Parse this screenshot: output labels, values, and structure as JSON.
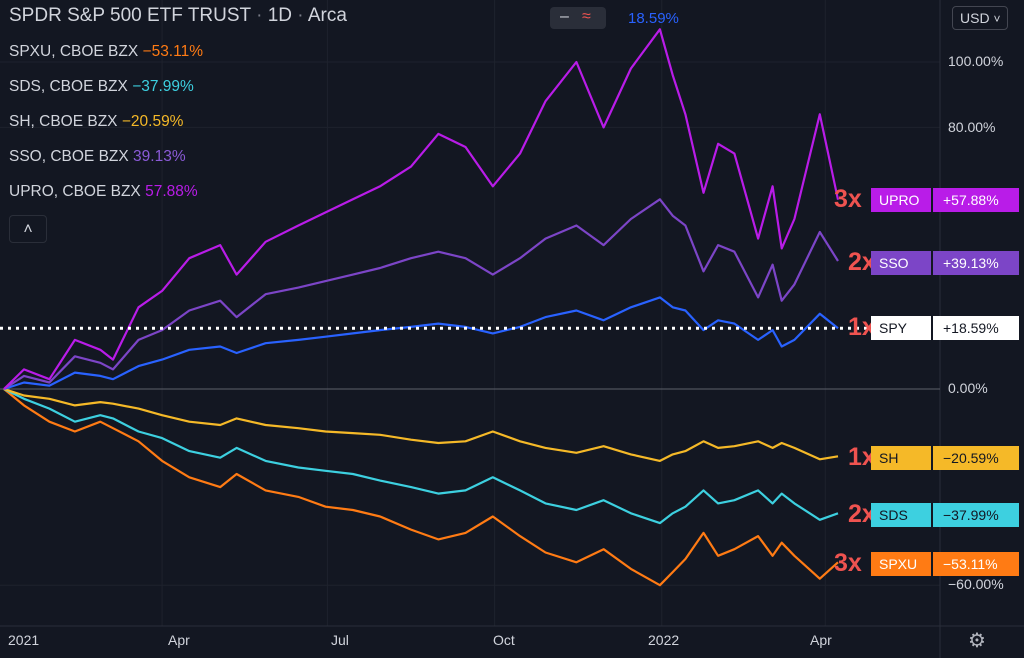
{
  "header": {
    "symbol": "SPDR S&P 500 ETF TRUST",
    "interval": "1D",
    "exchange": "Arca",
    "sep": "·"
  },
  "toolbar": {
    "minus": "–",
    "wave": "≈",
    "top_value": "18.59%",
    "currency": "USD",
    "chevron": "˅",
    "collapse": "˄",
    "settings": "⚙"
  },
  "colors": {
    "background": "#131722",
    "SPXU": "#ff7b14",
    "SDS": "#3dd0e0",
    "SH": "#f5b928",
    "SSO": "#7c45c7",
    "UPRO": "#b91ce8",
    "SPY": "#2962ff",
    "zero_line": "#5d606b",
    "multiplier": "#ef5350"
  },
  "legend": [
    {
      "name": "SPXU, CBOE BZX",
      "value": "−53.11%",
      "color": "#ff7b14"
    },
    {
      "name": "SDS, CBOE BZX",
      "value": "−37.99%",
      "color": "#3dd0e0"
    },
    {
      "name": "SH, CBOE BZX",
      "value": "−20.59%",
      "color": "#f5b928"
    },
    {
      "name": "SSO, CBOE BZX",
      "value": "39.13%",
      "color": "#7c45c7"
    },
    {
      "name": "UPRO, CBOE BZX",
      "value": "57.88%",
      "color": "#b91ce8"
    }
  ],
  "badges": [
    {
      "mult": "3x",
      "name": "UPRO",
      "value": "+57.88%",
      "bg": "#b91ce8",
      "fg": "#ffffff"
    },
    {
      "mult": "2x",
      "name": "SSO",
      "value": "+39.13%",
      "bg": "#7c45c7",
      "fg": "#ffffff"
    },
    {
      "mult": "1x",
      "name": "SPY",
      "value": "+18.59%",
      "bg": "#ffffff",
      "fg": "#131722"
    },
    {
      "mult": "1x",
      "name": "SH",
      "value": "−20.59%",
      "bg": "#f5b928",
      "fg": "#131722"
    },
    {
      "mult": "2x",
      "name": "SDS",
      "value": "−37.99%",
      "bg": "#3dd0e0",
      "fg": "#131722"
    },
    {
      "mult": "3x",
      "name": "SPXU",
      "value": "−53.11%",
      "bg": "#ff7b14",
      "fg": "#ffffff"
    }
  ],
  "chart_data": {
    "type": "line",
    "title": "SPDR S&P 500 ETF TRUST",
    "y_scale": "percent change",
    "ylim": [
      -70,
      120
    ],
    "y_ticks": [
      "100.00%",
      "80.00%",
      "0.00%",
      "−60.00%"
    ],
    "x_ticks": [
      "2021",
      "Apr",
      "Jul",
      "Oct",
      "2022",
      "Apr"
    ],
    "x_tick_dates": [
      "2021-01-01",
      "2021-04-01",
      "2021-07-01",
      "2021-10-01",
      "2022-01-01",
      "2022-04-01"
    ],
    "series": [
      {
        "name": "SPXU",
        "values": [
          [
            "2021-01-04",
            0
          ],
          [
            "2021-01-15",
            -5
          ],
          [
            "2021-01-29",
            -10
          ],
          [
            "2021-02-12",
            -13
          ],
          [
            "2021-02-26",
            -10
          ],
          [
            "2021-03-05",
            -12
          ],
          [
            "2021-03-19",
            -16
          ],
          [
            "2021-04-01",
            -22
          ],
          [
            "2021-04-16",
            -27
          ],
          [
            "2021-05-03",
            -30
          ],
          [
            "2021-05-12",
            -26
          ],
          [
            "2021-05-28",
            -31
          ],
          [
            "2021-06-15",
            -33
          ],
          [
            "2021-06-30",
            -36
          ],
          [
            "2021-07-15",
            -37
          ],
          [
            "2021-07-30",
            -39
          ],
          [
            "2021-08-16",
            -43
          ],
          [
            "2021-08-31",
            -46
          ],
          [
            "2021-09-15",
            -44
          ],
          [
            "2021-09-30",
            -39
          ],
          [
            "2021-10-15",
            -45
          ],
          [
            "2021-10-29",
            -50
          ],
          [
            "2021-11-15",
            -53
          ],
          [
            "2021-11-30",
            -49
          ],
          [
            "2021-12-15",
            -55
          ],
          [
            "2021-12-31",
            -60
          ],
          [
            "2022-01-07",
            -56
          ],
          [
            "2022-01-14",
            -52
          ],
          [
            "2022-01-24",
            -44
          ],
          [
            "2022-02-01",
            -51
          ],
          [
            "2022-02-10",
            -49
          ],
          [
            "2022-02-23",
            -45
          ],
          [
            "2022-03-03",
            -51
          ],
          [
            "2022-03-08",
            -47
          ],
          [
            "2022-03-15",
            -51
          ],
          [
            "2022-03-29",
            -58
          ],
          [
            "2022-04-08",
            -53
          ]
        ]
      },
      {
        "name": "SDS",
        "values": [
          [
            "2021-01-04",
            0
          ],
          [
            "2021-01-15",
            -3
          ],
          [
            "2021-01-29",
            -6
          ],
          [
            "2021-02-12",
            -10
          ],
          [
            "2021-02-26",
            -8
          ],
          [
            "2021-03-05",
            -9
          ],
          [
            "2021-03-19",
            -13
          ],
          [
            "2021-04-01",
            -15
          ],
          [
            "2021-04-16",
            -19
          ],
          [
            "2021-05-03",
            -21
          ],
          [
            "2021-05-12",
            -18
          ],
          [
            "2021-05-28",
            -22
          ],
          [
            "2021-06-15",
            -24
          ],
          [
            "2021-06-30",
            -25
          ],
          [
            "2021-07-15",
            -26
          ],
          [
            "2021-07-30",
            -28
          ],
          [
            "2021-08-16",
            -30
          ],
          [
            "2021-08-31",
            -32
          ],
          [
            "2021-09-15",
            -31
          ],
          [
            "2021-09-30",
            -27
          ],
          [
            "2021-10-15",
            -31
          ],
          [
            "2021-10-29",
            -35
          ],
          [
            "2021-11-15",
            -37
          ],
          [
            "2021-11-30",
            -34
          ],
          [
            "2021-12-15",
            -38
          ],
          [
            "2021-12-31",
            -41
          ],
          [
            "2022-01-07",
            -38
          ],
          [
            "2022-01-14",
            -36
          ],
          [
            "2022-01-24",
            -31
          ],
          [
            "2022-02-01",
            -35
          ],
          [
            "2022-02-10",
            -34
          ],
          [
            "2022-02-23",
            -31
          ],
          [
            "2022-03-03",
            -35
          ],
          [
            "2022-03-08",
            -32
          ],
          [
            "2022-03-15",
            -35
          ],
          [
            "2022-03-29",
            -40
          ],
          [
            "2022-04-08",
            -38
          ]
        ]
      },
      {
        "name": "SH",
        "values": [
          [
            "2021-01-04",
            0
          ],
          [
            "2021-01-15",
            -2
          ],
          [
            "2021-01-29",
            -3
          ],
          [
            "2021-02-12",
            -5
          ],
          [
            "2021-02-26",
            -4
          ],
          [
            "2021-03-05",
            -4.5
          ],
          [
            "2021-03-19",
            -6
          ],
          [
            "2021-04-01",
            -8
          ],
          [
            "2021-04-16",
            -10
          ],
          [
            "2021-05-03",
            -11
          ],
          [
            "2021-05-12",
            -9
          ],
          [
            "2021-05-28",
            -11
          ],
          [
            "2021-06-15",
            -12
          ],
          [
            "2021-06-30",
            -13
          ],
          [
            "2021-07-15",
            -13.5
          ],
          [
            "2021-07-30",
            -14
          ],
          [
            "2021-08-16",
            -15.5
          ],
          [
            "2021-08-31",
            -16.5
          ],
          [
            "2021-09-15",
            -16
          ],
          [
            "2021-09-30",
            -13
          ],
          [
            "2021-10-15",
            -16
          ],
          [
            "2021-10-29",
            -18
          ],
          [
            "2021-11-15",
            -19.5
          ],
          [
            "2021-11-30",
            -17.5
          ],
          [
            "2021-12-15",
            -20
          ],
          [
            "2021-12-31",
            -22
          ],
          [
            "2022-01-07",
            -20
          ],
          [
            "2022-01-14",
            -19
          ],
          [
            "2022-01-24",
            -16
          ],
          [
            "2022-02-01",
            -18
          ],
          [
            "2022-02-10",
            -17.5
          ],
          [
            "2022-02-23",
            -16
          ],
          [
            "2022-03-03",
            -18
          ],
          [
            "2022-03-08",
            -16.5
          ],
          [
            "2022-03-15",
            -18
          ],
          [
            "2022-03-29",
            -21.5
          ],
          [
            "2022-04-08",
            -20.59
          ]
        ]
      },
      {
        "name": "SPY",
        "values": [
          [
            "2021-01-04",
            0
          ],
          [
            "2021-01-15",
            2
          ],
          [
            "2021-01-29",
            1
          ],
          [
            "2021-02-12",
            5
          ],
          [
            "2021-02-26",
            4
          ],
          [
            "2021-03-05",
            3
          ],
          [
            "2021-03-19",
            7
          ],
          [
            "2021-04-01",
            9
          ],
          [
            "2021-04-16",
            12
          ],
          [
            "2021-05-03",
            13
          ],
          [
            "2021-05-12",
            11
          ],
          [
            "2021-05-28",
            14
          ],
          [
            "2021-06-15",
            15
          ],
          [
            "2021-06-30",
            16
          ],
          [
            "2021-07-15",
            17
          ],
          [
            "2021-07-30",
            18
          ],
          [
            "2021-08-16",
            19
          ],
          [
            "2021-08-31",
            20
          ],
          [
            "2021-09-15",
            19
          ],
          [
            "2021-09-30",
            17
          ],
          [
            "2021-10-15",
            19
          ],
          [
            "2021-10-29",
            22
          ],
          [
            "2021-11-15",
            24
          ],
          [
            "2021-11-30",
            21
          ],
          [
            "2021-12-15",
            25
          ],
          [
            "2021-12-31",
            28
          ],
          [
            "2022-01-07",
            25
          ],
          [
            "2022-01-14",
            24
          ],
          [
            "2022-01-24",
            18
          ],
          [
            "2022-02-01",
            21
          ],
          [
            "2022-02-10",
            20
          ],
          [
            "2022-02-23",
            15
          ],
          [
            "2022-03-03",
            18
          ],
          [
            "2022-03-08",
            13
          ],
          [
            "2022-03-15",
            15
          ],
          [
            "2022-03-29",
            23
          ],
          [
            "2022-04-08",
            18.59
          ]
        ]
      },
      {
        "name": "SSO",
        "values": [
          [
            "2021-01-04",
            0
          ],
          [
            "2021-01-15",
            4
          ],
          [
            "2021-01-29",
            2
          ],
          [
            "2021-02-12",
            10
          ],
          [
            "2021-02-26",
            8
          ],
          [
            "2021-03-05",
            6
          ],
          [
            "2021-03-19",
            15
          ],
          [
            "2021-04-01",
            18
          ],
          [
            "2021-04-16",
            24
          ],
          [
            "2021-05-03",
            27
          ],
          [
            "2021-05-12",
            22
          ],
          [
            "2021-05-28",
            29
          ],
          [
            "2021-06-15",
            31
          ],
          [
            "2021-06-30",
            33
          ],
          [
            "2021-07-15",
            35
          ],
          [
            "2021-07-30",
            37
          ],
          [
            "2021-08-16",
            40
          ],
          [
            "2021-08-31",
            42
          ],
          [
            "2021-09-15",
            40
          ],
          [
            "2021-09-30",
            35
          ],
          [
            "2021-10-15",
            40
          ],
          [
            "2021-10-29",
            46
          ],
          [
            "2021-11-15",
            50
          ],
          [
            "2021-11-30",
            44
          ],
          [
            "2021-12-15",
            52
          ],
          [
            "2021-12-31",
            58
          ],
          [
            "2022-01-07",
            53
          ],
          [
            "2022-01-14",
            50
          ],
          [
            "2022-01-24",
            36
          ],
          [
            "2022-02-01",
            44
          ],
          [
            "2022-02-10",
            42
          ],
          [
            "2022-02-23",
            28
          ],
          [
            "2022-03-03",
            38
          ],
          [
            "2022-03-08",
            27
          ],
          [
            "2022-03-15",
            32
          ],
          [
            "2022-03-29",
            48
          ],
          [
            "2022-04-08",
            39.13
          ]
        ]
      },
      {
        "name": "UPRO",
        "values": [
          [
            "2021-01-04",
            0
          ],
          [
            "2021-01-15",
            6
          ],
          [
            "2021-01-29",
            3
          ],
          [
            "2021-02-12",
            15
          ],
          [
            "2021-02-26",
            12
          ],
          [
            "2021-03-05",
            9
          ],
          [
            "2021-03-19",
            25
          ],
          [
            "2021-04-01",
            30
          ],
          [
            "2021-04-16",
            40
          ],
          [
            "2021-05-03",
            44
          ],
          [
            "2021-05-12",
            35
          ],
          [
            "2021-05-28",
            45
          ],
          [
            "2021-06-15",
            50
          ],
          [
            "2021-06-30",
            54
          ],
          [
            "2021-07-15",
            58
          ],
          [
            "2021-07-30",
            62
          ],
          [
            "2021-08-16",
            68
          ],
          [
            "2021-08-31",
            78
          ],
          [
            "2021-09-15",
            74
          ],
          [
            "2021-09-30",
            62
          ],
          [
            "2021-10-15",
            72
          ],
          [
            "2021-10-29",
            88
          ],
          [
            "2021-11-15",
            100
          ],
          [
            "2021-11-30",
            80
          ],
          [
            "2021-12-15",
            98
          ],
          [
            "2021-12-31",
            110
          ],
          [
            "2022-01-07",
            96
          ],
          [
            "2022-01-14",
            84
          ],
          [
            "2022-01-24",
            60
          ],
          [
            "2022-02-01",
            75
          ],
          [
            "2022-02-10",
            72
          ],
          [
            "2022-02-23",
            46
          ],
          [
            "2022-03-03",
            62
          ],
          [
            "2022-03-08",
            43
          ],
          [
            "2022-03-15",
            52
          ],
          [
            "2022-03-29",
            84
          ],
          [
            "2022-04-08",
            57.88
          ]
        ]
      }
    ]
  }
}
